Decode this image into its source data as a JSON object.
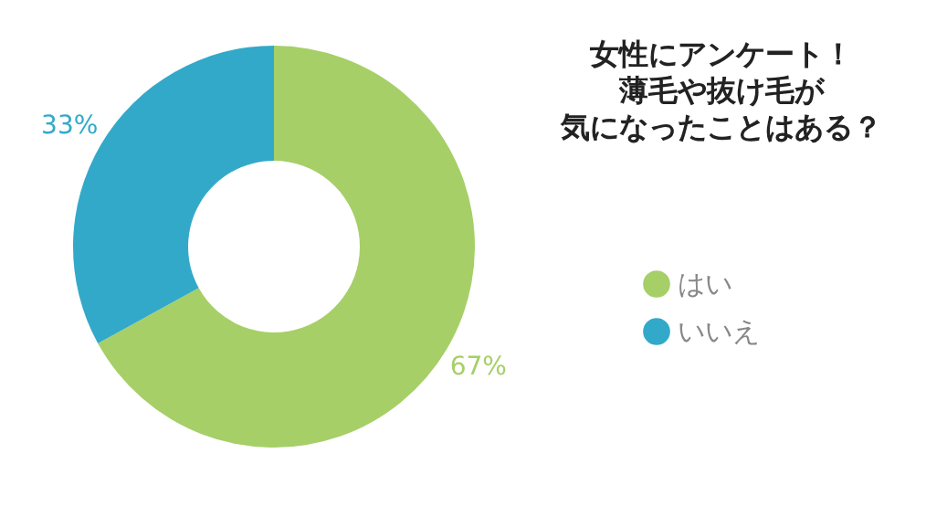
{
  "chart_data": {
    "type": "donut",
    "title": "女性にアンケート！薄毛や抜け毛が気になったことはある？",
    "categories": [
      "はい",
      "いいえ"
    ],
    "values": [
      67,
      33
    ],
    "colors": [
      "#a6cf68",
      "#33a9c9"
    ],
    "value_labels": [
      "67%",
      "33%"
    ],
    "legend": "right",
    "marker": "circle"
  }
}
